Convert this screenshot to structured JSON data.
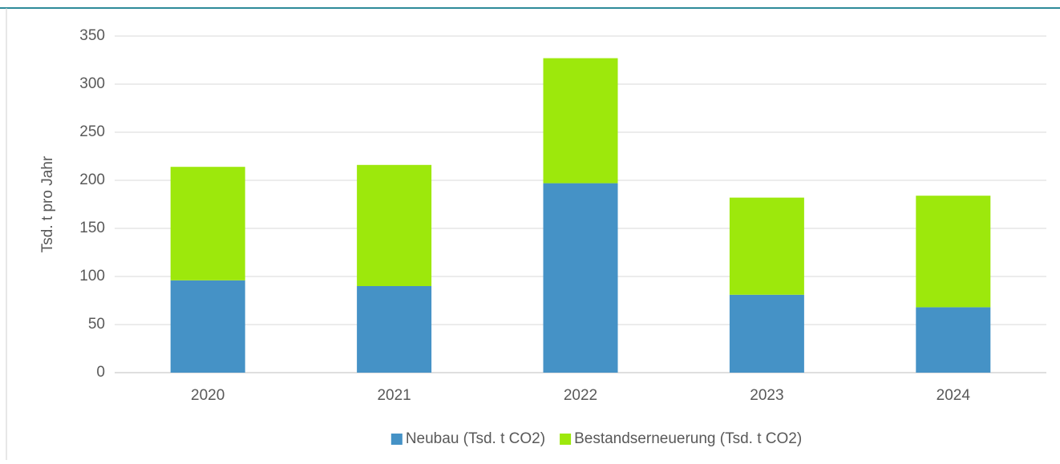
{
  "chart_data": {
    "type": "stacked_bar",
    "y_label": "Tsd. t pro Jahr",
    "categories": [
      "2020",
      "2021",
      "2022",
      "2023",
      "2024"
    ],
    "series": [
      {
        "name": "Neubau (Tsd. t CO2)",
        "color": "#4592c6",
        "values": [
          96,
          90,
          197,
          81,
          68
        ]
      },
      {
        "name": "Bestandserneuerung (Tsd. t CO2)",
        "color": "#9de80c",
        "values": [
          118,
          126,
          130,
          101,
          116
        ]
      }
    ],
    "ylim": [
      0,
      350
    ],
    "yticks": [
      0,
      50,
      100,
      150,
      200,
      250,
      300,
      350
    ],
    "grid": true,
    "legend": "bottom"
  }
}
